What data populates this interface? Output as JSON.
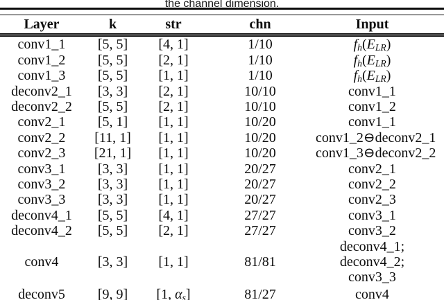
{
  "caption": "the channel dimension.",
  "table": {
    "headers": [
      "Layer",
      "k",
      "str",
      "chn",
      "Input"
    ],
    "rows": [
      {
        "cells": [
          "conv1_1",
          "[5, 5]",
          "[4, 1]",
          "1/10",
          [
            [
              "i",
              "f"
            ],
            [
              "s",
              "h"
            ],
            [
              "n",
              "("
            ],
            [
              "i",
              "E"
            ],
            [
              "s",
              "LR"
            ],
            [
              "n",
              ")"
            ]
          ]
        ]
      },
      {
        "cells": [
          "conv1_2",
          "[5, 5]",
          "[2, 1]",
          "1/10",
          [
            [
              "i",
              "f"
            ],
            [
              "s",
              "h"
            ],
            [
              "n",
              "("
            ],
            [
              "i",
              "E"
            ],
            [
              "s",
              "LR"
            ],
            [
              "n",
              ")"
            ]
          ]
        ]
      },
      {
        "cells": [
          "conv1_3",
          "[5, 5]",
          "[1, 1]",
          "1/10",
          [
            [
              "i",
              "f"
            ],
            [
              "s",
              "h"
            ],
            [
              "n",
              "("
            ],
            [
              "i",
              "E"
            ],
            [
              "s",
              "LR"
            ],
            [
              "n",
              ")"
            ]
          ]
        ]
      },
      {
        "cells": [
          "deconv2_1",
          "[3, 3]",
          "[2, 1]",
          "10/10",
          "conv1_1"
        ]
      },
      {
        "cells": [
          "deconv2_2",
          "[5, 5]",
          "[2, 1]",
          "10/10",
          "conv1_2"
        ]
      },
      {
        "cells": [
          "conv2_1",
          "[5, 1]",
          "[1, 1]",
          "10/20",
          "conv1_1"
        ]
      },
      {
        "cells": [
          "conv2_2",
          "[11, 1]",
          "[1, 1]",
          "10/20",
          "conv1_2⊖deconv2_1"
        ]
      },
      {
        "cells": [
          "conv2_3",
          "[21, 1]",
          "[1, 1]",
          "10/20",
          "conv1_3⊖deconv2_2"
        ]
      },
      {
        "cells": [
          "conv3_1",
          "[3, 3]",
          "[1, 1]",
          "20/27",
          "conv2_1"
        ]
      },
      {
        "cells": [
          "conv3_2",
          "[3, 3]",
          "[1, 1]",
          "20/27",
          "conv2_2"
        ]
      },
      {
        "cells": [
          "conv3_3",
          "[3, 3]",
          "[1, 1]",
          "20/27",
          "conv2_3"
        ]
      },
      {
        "cells": [
          "deconv4_1",
          "[5, 5]",
          "[4, 1]",
          "27/27",
          "conv3_1"
        ]
      },
      {
        "cells": [
          "deconv4_2",
          "[5, 5]",
          "[2, 1]",
          "27/27",
          "conv3_2"
        ]
      },
      {
        "cells": [
          "conv4",
          "[3, 3]",
          "[1, 1]",
          "81/81",
          "deconv4_1;\ndeconv4_2; conv3_3"
        ]
      },
      {
        "cells": [
          "deconv5",
          "[9, 9]",
          [
            [
              "n",
              "[1, "
            ],
            [
              "i",
              "α"
            ],
            [
              "s",
              "s"
            ],
            [
              "n",
              "]"
            ]
          ],
          "81/27",
          "conv4"
        ]
      }
    ]
  }
}
